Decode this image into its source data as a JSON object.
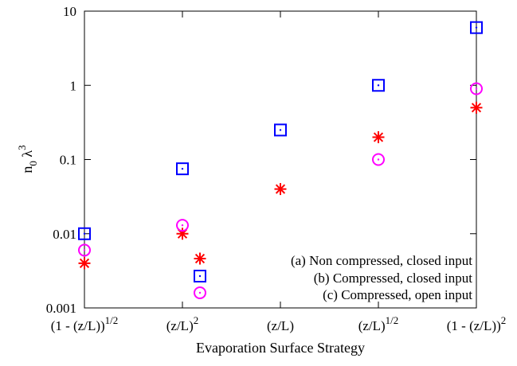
{
  "chart_data": {
    "type": "scatter",
    "title": "",
    "xlabel": "Evaporation Surface Strategy",
    "ylabel": "n0 λ3",
    "ylabel_parts": {
      "n": "n",
      "sub": "0",
      "lambda": " λ",
      "sup": "3"
    },
    "yscale": "log",
    "ylim": [
      0.001,
      10
    ],
    "y_ticks": [
      {
        "value": 0.001,
        "label": "0.001"
      },
      {
        "value": 0.01,
        "label": "0.01"
      },
      {
        "value": 0.1,
        "label": "0.1"
      },
      {
        "value": 1,
        "label": "1"
      },
      {
        "value": 10,
        "label": "10"
      }
    ],
    "categories": [
      {
        "base": "(1 - (z/L))",
        "sup": "1/2"
      },
      {
        "base": "(z/L)",
        "sup": "2"
      },
      {
        "base": "(z/L)",
        "sup": ""
      },
      {
        "base": "(z/L)",
        "sup": "1/2"
      },
      {
        "base": "(1 - (z/L))",
        "sup": "2"
      }
    ],
    "grid": false,
    "legend_position": "bottom-right",
    "series": [
      {
        "name": "(a) Non compressed, closed input",
        "marker": "asterisk",
        "color": "#ff0000",
        "values": [
          0.004,
          0.01,
          0.04,
          0.2,
          0.5
        ]
      },
      {
        "name": "(b) Compressed, closed input",
        "marker": "dotted-square",
        "color": "#0000ff",
        "values": [
          0.01,
          0.075,
          0.25,
          1.0,
          6.0
        ]
      },
      {
        "name": "(c) Compressed, open input",
        "marker": "dotted-circle",
        "color": "#ff00ff",
        "values": [
          0.006,
          0.013,
          null,
          0.1,
          0.9
        ]
      }
    ]
  }
}
